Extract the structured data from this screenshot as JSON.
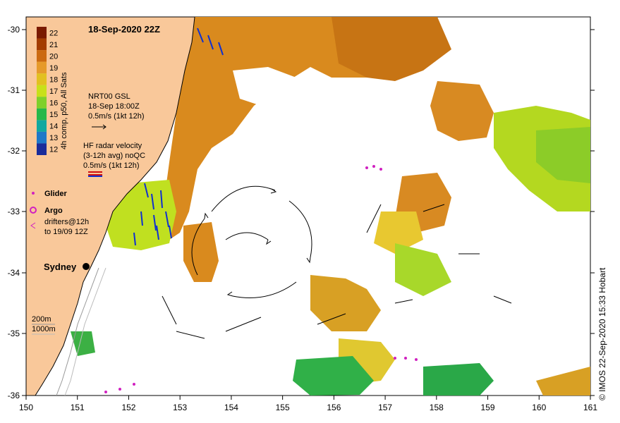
{
  "map": {
    "title": "18-Sep-2020 22Z",
    "lon_ticks": [
      "150",
      "151",
      "152",
      "153",
      "154",
      "155",
      "156",
      "157",
      "158",
      "159",
      "160",
      "161"
    ],
    "lat_ticks": [
      "-30",
      "-31",
      "-32",
      "-33",
      "-34",
      "-35",
      "-36"
    ],
    "colorbar": {
      "label": "4h comp, p50, All Sats",
      "ticks": [
        "22",
        "21",
        "20",
        "19",
        "18",
        "17",
        "16",
        "15",
        "14",
        "13",
        "12"
      ],
      "colors": [
        "#7a1a00",
        "#a33c00",
        "#cc6a10",
        "#e69a2a",
        "#e2c020",
        "#c8e01a",
        "#7fd02a",
        "#25b84a",
        "#10a8a0",
        "#1e78c8",
        "#1a2c9a"
      ]
    },
    "legend": {
      "gsl_title": "NRT00 GSL",
      "gsl_time": "18-Sep 18:00Z",
      "gsl_scale": "0.5m/s (1kt 12h)",
      "hf_title": "HF radar velocity",
      "hf_avg": "(3-12h avg) noQC",
      "hf_scale": "0.5m/s (1kt 12h)",
      "glider": "Glider",
      "argo": "Argo",
      "drifters_1": "drifters@12h",
      "drifters_2": "to 19/09 12Z"
    },
    "place": "Sydney",
    "isobath_1": "200m",
    "isobath_2": "1000m",
    "credit": "© IMOS 22-Sep-2020 15:33 Hobart",
    "colors": {
      "land": "#f9c89a",
      "sst_warm": "#d98a1e",
      "sst_mid": "#e8b830",
      "sst_cool": "#c8e020",
      "sst_green": "#30b040",
      "hf_vectors": "#1030d0",
      "glider_argo": "#d020c0"
    }
  }
}
